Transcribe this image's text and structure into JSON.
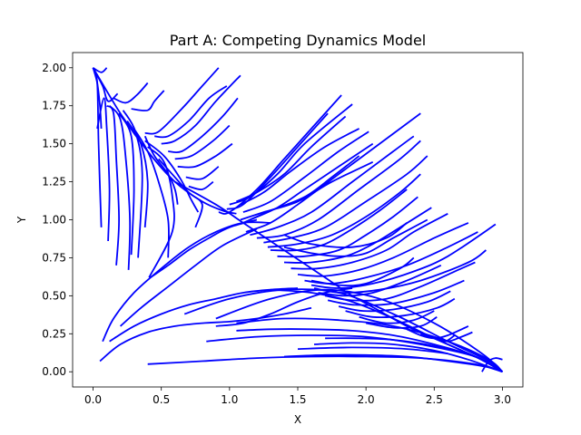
{
  "chart_data": {
    "type": "line",
    "title": "Part A: Competing Dynamics Model",
    "xlabel": "X",
    "ylabel": "Y",
    "xlim": [
      -0.15,
      3.15
    ],
    "ylim": [
      -0.1,
      2.1
    ],
    "xticks": [
      0.0,
      0.5,
      1.0,
      1.5,
      2.0,
      2.5,
      3.0
    ],
    "yticks": [
      0.0,
      0.25,
      0.5,
      0.75,
      1.0,
      1.25,
      1.5,
      1.75,
      2.0
    ],
    "xtick_labels": [
      "0.0",
      "0.5",
      "1.0",
      "1.5",
      "2.0",
      "2.5",
      "3.0"
    ],
    "ytick_labels": [
      "0.00",
      "0.25",
      "0.50",
      "0.75",
      "1.00",
      "1.25",
      "1.50",
      "1.75",
      "2.00"
    ],
    "grid": false,
    "line_color": "#0000ff",
    "series": [
      {
        "x": [
          0.0,
          0.06,
          0.1
        ],
        "y": [
          2.0,
          1.97,
          2.0
        ]
      },
      {
        "x": [
          0.0,
          0.03,
          0.04,
          0.06
        ],
        "y": [
          2.0,
          1.9,
          1.5,
          0.95
        ]
      },
      {
        "x": [
          0.0,
          0.03,
          0.05,
          0.06
        ],
        "y": [
          2.0,
          1.9,
          1.75,
          1.6
        ]
      },
      {
        "x": [
          0.03,
          0.08,
          0.1,
          0.12,
          0.11
        ],
        "y": [
          1.6,
          1.8,
          1.6,
          1.2,
          0.86
        ]
      },
      {
        "x": [
          0.0,
          0.07,
          0.11,
          0.18
        ],
        "y": [
          2.0,
          1.88,
          1.78,
          1.83
        ]
      },
      {
        "x": [
          0.1,
          0.15,
          0.17,
          0.19,
          0.17
        ],
        "y": [
          1.75,
          1.7,
          1.4,
          1.0,
          0.7
        ]
      },
      {
        "x": [
          0.12,
          0.2,
          0.24,
          0.27,
          0.26
        ],
        "y": [
          1.75,
          1.66,
          1.4,
          1.0,
          0.67
        ]
      },
      {
        "x": [
          0.19,
          0.28,
          0.3,
          0.28
        ],
        "y": [
          1.7,
          1.55,
          1.2,
          0.77
        ]
      },
      {
        "x": [
          0.15,
          0.24,
          0.32,
          0.4
        ],
        "y": [
          1.8,
          1.77,
          1.82,
          1.9
        ]
      },
      {
        "x": [
          0.25,
          0.35,
          0.4,
          0.38
        ],
        "y": [
          1.65,
          1.5,
          1.25,
          0.95
        ]
      },
      {
        "x": [
          0.3,
          0.4,
          0.48,
          0.55,
          0.55
        ],
        "y": [
          1.6,
          1.45,
          1.25,
          1.0,
          0.75
        ]
      },
      {
        "x": [
          0.38,
          0.45,
          0.55,
          0.6,
          0.62
        ],
        "y": [
          1.55,
          1.42,
          1.3,
          1.2,
          1.1
        ]
      },
      {
        "x": [
          0.28,
          0.4,
          0.45,
          0.52
        ],
        "y": [
          1.73,
          1.72,
          1.78,
          1.85
        ]
      },
      {
        "x": [
          0.22,
          0.31,
          0.36,
          0.33
        ],
        "y": [
          1.72,
          1.58,
          1.3,
          0.75
        ]
      },
      {
        "x": [
          0.4,
          0.52,
          0.58,
          0.58,
          0.41
        ],
        "y": [
          1.48,
          1.38,
          1.16,
          0.92,
          0.62
        ]
      },
      {
        "x": [
          0.38,
          0.52,
          0.64,
          0.72,
          0.77
        ],
        "y": [
          1.52,
          1.42,
          1.27,
          1.13,
          1.05
        ]
      },
      {
        "x": [
          0.48,
          0.58,
          0.7,
          0.8,
          0.75
        ],
        "y": [
          1.4,
          1.3,
          1.18,
          1.1,
          0.95
        ]
      },
      {
        "x": [
          0.38,
          0.48,
          0.65,
          0.8,
          0.92
        ],
        "y": [
          1.57,
          1.58,
          1.73,
          1.88,
          2.0
        ]
      },
      {
        "x": [
          0.45,
          0.55,
          0.7,
          0.85,
          0.98
        ],
        "y": [
          1.55,
          1.55,
          1.65,
          1.8,
          1.88
        ]
      },
      {
        "x": [
          0.5,
          0.6,
          0.75,
          0.9,
          1.08
        ],
        "y": [
          1.5,
          1.52,
          1.62,
          1.78,
          1.95
        ]
      },
      {
        "x": [
          0.55,
          0.65,
          0.8,
          0.95,
          1.06
        ],
        "y": [
          1.45,
          1.45,
          1.55,
          1.68,
          1.8
        ]
      },
      {
        "x": [
          0.6,
          0.72,
          0.88,
          1.0
        ],
        "y": [
          1.4,
          1.42,
          1.52,
          1.62
        ]
      },
      {
        "x": [
          0.62,
          0.75,
          0.9,
          1.02
        ],
        "y": [
          1.35,
          1.35,
          1.42,
          1.5
        ]
      },
      {
        "x": [
          0.68,
          0.8,
          0.92
        ],
        "y": [
          1.28,
          1.27,
          1.35
        ]
      },
      {
        "x": [
          0.7,
          0.8,
          0.88
        ],
        "y": [
          1.22,
          1.2,
          1.25
        ]
      },
      {
        "x": [
          0.0,
          0.2,
          0.4,
          0.6,
          0.8,
          0.95,
          1.05
        ],
        "y": [
          2.0,
          1.7,
          1.45,
          1.25,
          1.12,
          1.06,
          1.04
        ]
      },
      {
        "x": [
          0.92,
          1.0,
          1.2,
          1.4,
          1.6,
          1.82
        ],
        "y": [
          1.05,
          1.05,
          1.2,
          1.4,
          1.6,
          1.82
        ]
      },
      {
        "x": [
          0.98,
          1.1,
          1.3,
          1.5,
          1.72
        ],
        "y": [
          1.07,
          1.1,
          1.28,
          1.48,
          1.7
        ]
      },
      {
        "x": [
          1.0,
          1.15,
          1.35,
          1.55,
          1.9
        ],
        "y": [
          1.1,
          1.15,
          1.3,
          1.5,
          1.76
        ]
      },
      {
        "x": [
          1.05,
          1.2,
          1.4,
          1.6,
          1.85
        ],
        "y": [
          1.12,
          1.18,
          1.3,
          1.48,
          1.68
        ]
      },
      {
        "x": [
          1.08,
          1.25,
          1.45,
          1.7,
          1.95
        ],
        "y": [
          1.1,
          1.18,
          1.32,
          1.48,
          1.6
        ]
      },
      {
        "x": [
          1.1,
          1.3,
          1.55,
          1.8,
          2.02
        ],
        "y": [
          1.05,
          1.12,
          1.28,
          1.45,
          1.58
        ]
      },
      {
        "x": [
          1.15,
          1.35,
          1.55,
          1.8,
          2.05
        ],
        "y": [
          1.0,
          1.08,
          1.2,
          1.35,
          1.5
        ]
      },
      {
        "x": [
          1.1,
          1.3,
          1.55,
          1.75,
          1.95
        ],
        "y": [
          0.98,
          1.06,
          1.15,
          1.28,
          1.42
        ]
      },
      {
        "x": [
          1.08,
          1.25,
          1.5,
          1.75,
          2.05
        ],
        "y": [
          1.0,
          1.05,
          1.12,
          1.25,
          1.38
        ]
      },
      {
        "x": [
          0.6,
          0.9,
          1.1,
          1.3,
          1.5,
          1.7,
          1.9,
          2.1,
          2.3,
          2.5,
          2.7,
          2.85,
          3.0
        ],
        "y": [
          1.25,
          1.1,
          0.98,
          0.86,
          0.74,
          0.62,
          0.5,
          0.4,
          0.3,
          0.22,
          0.14,
          0.08,
          0.0
        ]
      },
      {
        "x": [
          1.12,
          1.3,
          1.5,
          1.8,
          2.1,
          2.4
        ],
        "y": [
          0.92,
          0.98,
          1.1,
          1.3,
          1.5,
          1.7
        ]
      },
      {
        "x": [
          1.15,
          1.35,
          1.6,
          1.9,
          2.2,
          2.35
        ],
        "y": [
          0.9,
          0.95,
          1.05,
          1.25,
          1.45,
          1.55
        ]
      },
      {
        "x": [
          1.2,
          1.4,
          1.65,
          1.95,
          2.25,
          2.4
        ],
        "y": [
          0.88,
          0.9,
          1.0,
          1.2,
          1.4,
          1.52
        ]
      },
      {
        "x": [
          1.25,
          1.45,
          1.7,
          2.0,
          2.3,
          2.45
        ],
        "y": [
          0.85,
          0.88,
          0.95,
          1.12,
          1.3,
          1.42
        ]
      },
      {
        "x": [
          1.28,
          1.5,
          1.75,
          2.0,
          2.25,
          2.4
        ],
        "y": [
          0.82,
          0.84,
          0.9,
          1.02,
          1.18,
          1.3
        ]
      },
      {
        "x": [
          1.3,
          1.5,
          1.7,
          1.9,
          2.1,
          2.3
        ],
        "y": [
          0.8,
          0.8,
          0.84,
          0.94,
          1.06,
          1.2
        ]
      },
      {
        "x": [
          1.35,
          1.55,
          1.8,
          2.0,
          2.2,
          2.38
        ],
        "y": [
          0.76,
          0.76,
          0.8,
          0.9,
          1.02,
          1.15
        ]
      },
      {
        "x": [
          1.4,
          1.6,
          1.85,
          2.05,
          2.25,
          2.48
        ],
        "y": [
          0.72,
          0.72,
          0.76,
          0.84,
          0.95,
          1.08
        ]
      },
      {
        "x": [
          1.45,
          1.65,
          1.9,
          2.15,
          2.35,
          2.6
        ],
        "y": [
          0.68,
          0.68,
          0.72,
          0.8,
          0.92,
          1.04
        ]
      },
      {
        "x": [
          1.5,
          1.7,
          1.95,
          2.2,
          2.5,
          2.75
        ],
        "y": [
          0.64,
          0.63,
          0.67,
          0.75,
          0.88,
          0.98
        ]
      },
      {
        "x": [
          1.55,
          1.75,
          2.0,
          2.3,
          2.6,
          2.82
        ],
        "y": [
          0.6,
          0.58,
          0.62,
          0.7,
          0.82,
          0.92
        ]
      },
      {
        "x": [
          1.6,
          1.8,
          2.05,
          2.35,
          2.6,
          2.95
        ],
        "y": [
          0.57,
          0.55,
          0.58,
          0.66,
          0.76,
          0.97
        ]
      },
      {
        "x": [
          1.62,
          1.82,
          2.1,
          2.4,
          2.75,
          2.88
        ],
        "y": [
          0.55,
          0.52,
          0.54,
          0.6,
          0.72,
          0.8
        ]
      },
      {
        "x": [
          1.4,
          1.6,
          1.8,
          2.0,
          2.2,
          2.45
        ],
        "y": [
          0.82,
          0.78,
          0.76,
          0.78,
          0.88,
          1.0
        ]
      },
      {
        "x": [
          1.4,
          1.6,
          1.9,
          2.15,
          2.3
        ],
        "y": [
          0.9,
          0.84,
          0.82,
          0.88,
          0.98
        ]
      },
      {
        "x": [
          1.6,
          1.8,
          2.0,
          2.25,
          2.35
        ],
        "y": [
          0.6,
          0.57,
          0.58,
          0.68,
          0.75
        ]
      },
      {
        "x": [
          1.65,
          1.85,
          2.05,
          2.3,
          2.55
        ],
        "y": [
          0.52,
          0.5,
          0.52,
          0.6,
          0.7
        ]
      },
      {
        "x": [
          1.7,
          1.9,
          2.15,
          2.4,
          2.7,
          2.8
        ],
        "y": [
          0.5,
          0.47,
          0.48,
          0.56,
          0.68,
          0.72
        ]
      },
      {
        "x": [
          1.72,
          1.92,
          2.2,
          2.5,
          2.72
        ],
        "y": [
          0.47,
          0.44,
          0.45,
          0.52,
          0.6
        ]
      },
      {
        "x": [
          1.8,
          1.98,
          2.2,
          2.45,
          2.62
        ],
        "y": [
          0.43,
          0.4,
          0.41,
          0.46,
          0.53
        ]
      },
      {
        "x": [
          1.85,
          2.05,
          2.28,
          2.52,
          2.65
        ],
        "y": [
          0.4,
          0.36,
          0.37,
          0.42,
          0.48
        ]
      },
      {
        "x": [
          1.95,
          2.15,
          2.35,
          2.5
        ],
        "y": [
          0.36,
          0.32,
          0.34,
          0.4
        ]
      },
      {
        "x": [
          2.0,
          2.2,
          2.4,
          2.52
        ],
        "y": [
          0.32,
          0.29,
          0.3,
          0.36
        ]
      },
      {
        "x": [
          0.9,
          1.1,
          1.3,
          1.5,
          1.7,
          1.9
        ],
        "y": [
          0.3,
          0.32,
          0.38,
          0.46,
          0.52,
          0.55
        ]
      },
      {
        "x": [
          0.9,
          1.3,
          1.7,
          2.1,
          2.5,
          2.85,
          3.0
        ],
        "y": [
          0.35,
          0.48,
          0.54,
          0.48,
          0.32,
          0.12,
          0.0
        ]
      },
      {
        "x": [
          0.67,
          1.0,
          1.4,
          1.8,
          2.2,
          2.6,
          2.9,
          3.0
        ],
        "y": [
          0.38,
          0.48,
          0.54,
          0.52,
          0.38,
          0.2,
          0.07,
          0.0
        ]
      },
      {
        "x": [
          1.3,
          1.6,
          1.9,
          2.2,
          2.5,
          2.8,
          3.0
        ],
        "y": [
          0.54,
          0.52,
          0.46,
          0.35,
          0.22,
          0.1,
          0.0
        ]
      },
      {
        "x": [
          2.3,
          2.4,
          2.5,
          2.6,
          2.75
        ],
        "y": [
          0.28,
          0.24,
          0.22,
          0.24,
          0.3
        ]
      },
      {
        "x": [
          2.4,
          2.5,
          2.6,
          2.7,
          2.78
        ],
        "y": [
          0.25,
          0.22,
          0.2,
          0.23,
          0.26
        ]
      },
      {
        "x": [
          2.5,
          2.58,
          2.65
        ],
        "y": [
          0.22,
          0.2,
          0.24
        ]
      },
      {
        "x": [
          0.05,
          0.2,
          0.4,
          0.6,
          0.8,
          1.0,
          1.2,
          1.4,
          1.6
        ],
        "y": [
          0.07,
          0.18,
          0.26,
          0.3,
          0.32,
          0.33,
          0.35,
          0.38,
          0.42
        ]
      },
      {
        "x": [
          0.12,
          0.3,
          0.5,
          0.7,
          0.9,
          1.1,
          1.3,
          1.5
        ],
        "y": [
          0.2,
          0.3,
          0.38,
          0.44,
          0.48,
          0.52,
          0.54,
          0.55
        ]
      },
      {
        "x": [
          0.07,
          0.15,
          0.3,
          0.5,
          0.7,
          0.9,
          1.1,
          1.3
        ],
        "y": [
          0.2,
          0.35,
          0.52,
          0.68,
          0.82,
          0.92,
          0.98,
          0.98
        ]
      },
      {
        "x": [
          0.2,
          0.35,
          0.55,
          0.75,
          0.95,
          1.2
        ],
        "y": [
          0.3,
          0.42,
          0.56,
          0.7,
          0.83,
          0.94
        ]
      },
      {
        "x": [
          0.42,
          0.55,
          0.7,
          0.85,
          1.0,
          1.2
        ],
        "y": [
          0.62,
          0.7,
          0.8,
          0.88,
          0.95,
          1.0
        ]
      },
      {
        "x": [
          0.4,
          0.8,
          1.2,
          1.6,
          2.0,
          2.4,
          2.8,
          3.0
        ],
        "y": [
          0.05,
          0.07,
          0.09,
          0.1,
          0.1,
          0.09,
          0.05,
          0.0
        ]
      },
      {
        "x": [
          0.83,
          1.2,
          1.6,
          2.0,
          2.4,
          2.8,
          3.0
        ],
        "y": [
          0.2,
          0.23,
          0.24,
          0.23,
          0.18,
          0.1,
          0.0
        ]
      },
      {
        "x": [
          1.05,
          1.4,
          1.8,
          2.2,
          2.6,
          2.9,
          3.0
        ],
        "y": [
          0.32,
          0.35,
          0.34,
          0.3,
          0.2,
          0.08,
          0.0
        ]
      },
      {
        "x": [
          1.05,
          1.3,
          1.6,
          1.9,
          2.2,
          2.5,
          2.8,
          3.0
        ],
        "y": [
          0.27,
          0.28,
          0.28,
          0.27,
          0.24,
          0.18,
          0.1,
          0.0
        ]
      },
      {
        "x": [
          1.62,
          1.9,
          2.2,
          2.5,
          2.75,
          3.0
        ],
        "y": [
          0.18,
          0.19,
          0.18,
          0.14,
          0.08,
          0.0
        ]
      },
      {
        "x": [
          1.7,
          1.95,
          2.2,
          2.5,
          2.8,
          3.0
        ],
        "y": [
          0.22,
          0.22,
          0.21,
          0.17,
          0.1,
          0.0
        ]
      },
      {
        "x": [
          1.4,
          1.7,
          2.0,
          2.3,
          2.6,
          2.9,
          3.0
        ],
        "y": [
          0.1,
          0.11,
          0.11,
          0.1,
          0.07,
          0.03,
          0.0
        ]
      },
      {
        "x": [
          2.85,
          2.9,
          2.95,
          3.0
        ],
        "y": [
          0.0,
          0.07,
          0.09,
          0.08
        ]
      },
      {
        "x": [
          1.5,
          1.9,
          2.3,
          2.6
        ],
        "y": [
          0.15,
          0.16,
          0.15,
          0.12
        ]
      }
    ]
  }
}
